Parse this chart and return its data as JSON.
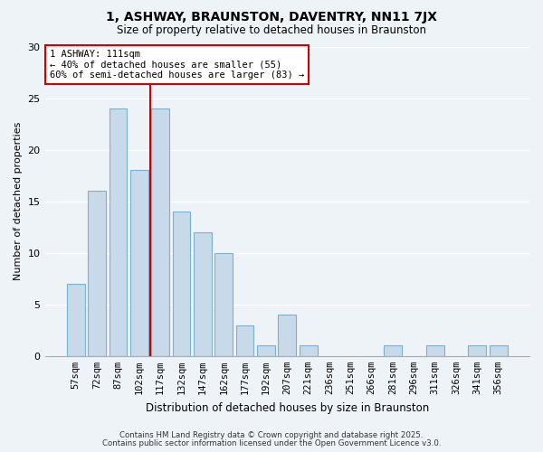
{
  "title": "1, ASHWAY, BRAUNSTON, DAVENTRY, NN11 7JX",
  "subtitle": "Size of property relative to detached houses in Braunston",
  "xlabel": "Distribution of detached houses by size in Braunston",
  "ylabel": "Number of detached properties",
  "categories": [
    "57sqm",
    "72sqm",
    "87sqm",
    "102sqm",
    "117sqm",
    "132sqm",
    "147sqm",
    "162sqm",
    "177sqm",
    "192sqm",
    "207sqm",
    "221sqm",
    "236sqm",
    "251sqm",
    "266sqm",
    "281sqm",
    "296sqm",
    "311sqm",
    "326sqm",
    "341sqm",
    "356sqm"
  ],
  "values": [
    7,
    16,
    24,
    18,
    24,
    14,
    12,
    10,
    3,
    1,
    4,
    1,
    0,
    0,
    0,
    1,
    0,
    1,
    0,
    1,
    1
  ],
  "bar_color": "#c8daea",
  "bar_edge_color": "#7ab0d0",
  "vline_color": "#cc0000",
  "vline_x_index": 3.5,
  "annotation_title": "1 ASHWAY: 111sqm",
  "annotation_line1": "← 40% of detached houses are smaller (55)",
  "annotation_line2": "60% of semi-detached houses are larger (83) →",
  "annotation_box_color": "white",
  "annotation_box_edge": "#cc0000",
  "ylim": [
    0,
    30
  ],
  "yticks": [
    0,
    5,
    10,
    15,
    20,
    25,
    30
  ],
  "footer1": "Contains HM Land Registry data © Crown copyright and database right 2025.",
  "footer2": "Contains public sector information licensed under the Open Government Licence v3.0.",
  "bg_color": "#eef3f8",
  "grid_color": "white",
  "title_fontsize": 10,
  "subtitle_fontsize": 8.5,
  "ylabel_fontsize": 8,
  "xlabel_fontsize": 8.5,
  "tick_fontsize": 7.5,
  "annotation_fontsize": 7.5,
  "footer_fontsize": 6.2
}
